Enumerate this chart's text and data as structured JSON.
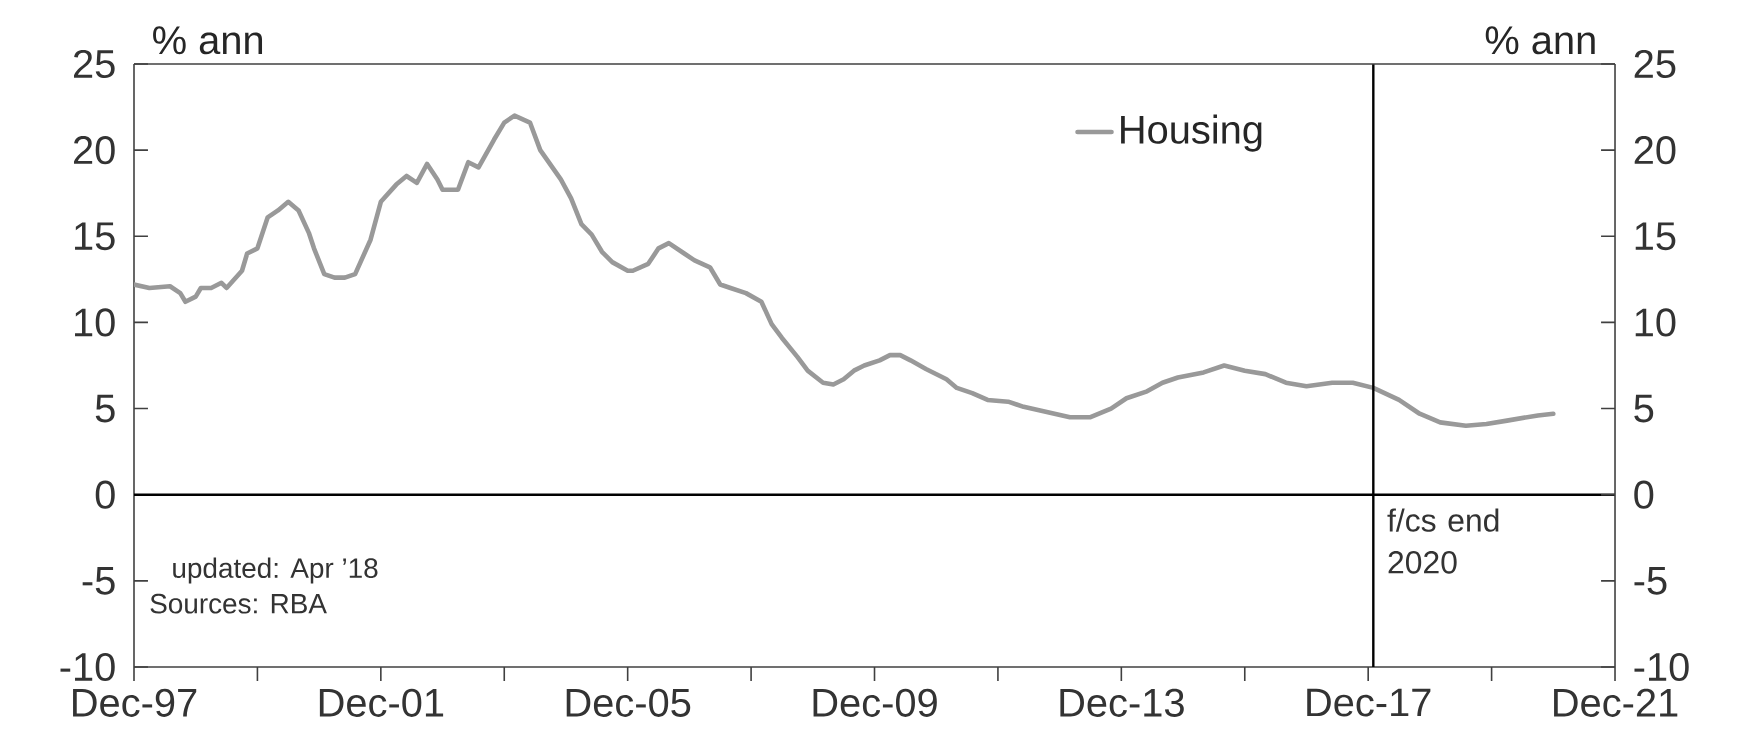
{
  "chart_data": {
    "type": "line",
    "ylabel": "% ann",
    "y2label": "% ann",
    "x": [
      "1997-12",
      "1998-03",
      "1998-07",
      "1998-09",
      "1998-10",
      "1998-12",
      "1999-01",
      "1999-03",
      "1999-05",
      "1999-06",
      "1999-09",
      "1999-10",
      "1999-12",
      "2000-02",
      "2000-04",
      "2000-06",
      "2000-08",
      "2000-10",
      "2000-11",
      "2001-01",
      "2001-03",
      "2001-05",
      "2001-07",
      "2001-10",
      "2001-12",
      "2002-03",
      "2002-05",
      "2002-07",
      "2002-09",
      "2002-11",
      "2002-12",
      "2003-03",
      "2003-05",
      "2003-07",
      "2003-10",
      "2003-12",
      "2004-02",
      "2004-05",
      "2004-07",
      "2004-11",
      "2005-01",
      "2005-03",
      "2005-05",
      "2005-07",
      "2005-09",
      "2005-12",
      "2006-01",
      "2006-04",
      "2006-06",
      "2006-08",
      "2006-11",
      "2007-01",
      "2007-04",
      "2007-06",
      "2007-08",
      "2007-11",
      "2008-02",
      "2008-04",
      "2008-06",
      "2008-09",
      "2008-11",
      "2009-02",
      "2009-04",
      "2009-06",
      "2009-08",
      "2009-10",
      "2010-01",
      "2010-03",
      "2010-05",
      "2010-07",
      "2010-10",
      "2011-02",
      "2011-04",
      "2011-07",
      "2011-10",
      "2012-02",
      "2012-05",
      "2012-08",
      "2013-02",
      "2013-06",
      "2013-10",
      "2014-01",
      "2014-05",
      "2014-08",
      "2014-11",
      "2015-04",
      "2015-08",
      "2015-12",
      "2016-04",
      "2016-08",
      "2016-12",
      "2017-05",
      "2017-09",
      "2018-01",
      "2018-06",
      "2018-10",
      "2019-02",
      "2019-07",
      "2019-11",
      "2020-03",
      "2020-09",
      "2020-12"
    ],
    "series": [
      {
        "name": "Housing",
        "color": "#999999",
        "values": [
          12.2,
          12.0,
          12.1,
          11.7,
          11.2,
          11.5,
          12.0,
          12.0,
          12.3,
          12.0,
          13.0,
          14.0,
          14.3,
          16.1,
          16.5,
          17.0,
          16.5,
          15.2,
          14.3,
          12.8,
          12.6,
          12.6,
          12.8,
          14.8,
          17.0,
          18.0,
          18.5,
          18.1,
          19.2,
          18.3,
          17.7,
          17.7,
          19.3,
          19.0,
          20.6,
          21.6,
          22.0,
          21.6,
          20.0,
          18.3,
          17.2,
          15.7,
          15.1,
          14.1,
          13.5,
          13.0,
          13.0,
          13.4,
          14.3,
          14.6,
          14.0,
          13.6,
          13.2,
          12.2,
          12.0,
          11.7,
          11.2,
          9.9,
          9.1,
          8.0,
          7.2,
          6.5,
          6.4,
          6.7,
          7.2,
          7.5,
          7.8,
          8.1,
          8.1,
          7.8,
          7.3,
          6.7,
          6.2,
          5.9,
          5.5,
          5.4,
          5.1,
          4.9,
          4.5,
          4.5,
          5.0,
          5.6,
          6.0,
          6.5,
          6.8,
          7.1,
          7.5,
          7.2,
          7.0,
          6.5,
          6.3,
          6.5,
          6.5,
          6.2,
          5.5,
          4.7,
          4.2,
          4.0,
          4.1,
          4.3,
          4.6,
          4.7
        ]
      }
    ],
    "xlim": [
      "1997-12",
      "2021-12"
    ],
    "xticks": [
      {
        "value": "1997-12",
        "label": "Dec-97"
      },
      {
        "value": "1999-12",
        "label": null
      },
      {
        "value": "2001-12",
        "label": "Dec-01"
      },
      {
        "value": "2003-12",
        "label": null
      },
      {
        "value": "2005-12",
        "label": "Dec-05"
      },
      {
        "value": "2007-12",
        "label": null
      },
      {
        "value": "2009-12",
        "label": "Dec-09"
      },
      {
        "value": "2011-12",
        "label": null
      },
      {
        "value": "2013-12",
        "label": "Dec-13"
      },
      {
        "value": "2015-12",
        "label": null
      },
      {
        "value": "2017-12",
        "label": "Dec-17"
      },
      {
        "value": "2019-12",
        "label": null
      },
      {
        "value": "2021-12",
        "label": "Dec-21"
      }
    ],
    "ylim": [
      -10,
      25
    ],
    "yticks": [
      -10,
      -5,
      0,
      5,
      10,
      15,
      20,
      25
    ],
    "y2lim": [
      -10,
      25
    ],
    "y2ticks": [
      -10,
      -5,
      0,
      5,
      10,
      15,
      20,
      25
    ],
    "ref_lines": [
      {
        "axis": "y",
        "value": 0,
        "color": "#000000"
      },
      {
        "axis": "x",
        "value": "2018-01",
        "label": "f/cs end 2020",
        "color": "#000000"
      }
    ],
    "annotations": [
      "updated: Apr ’18",
      "Sources: RBA"
    ],
    "legend": "top right",
    "grid": false,
    "marker": "none",
    "line_style": "solid"
  }
}
